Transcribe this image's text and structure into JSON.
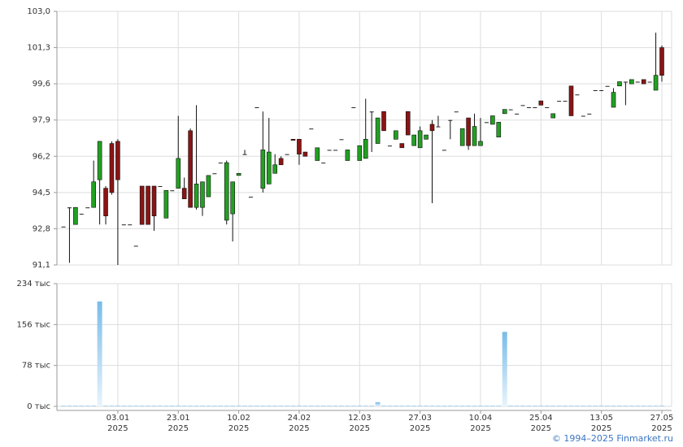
{
  "chart_data": {
    "type": "candlestick",
    "categories": [
      null,
      null,
      null,
      null,
      null,
      null,
      null,
      null,
      null,
      "03.01\n2025",
      null,
      null,
      null,
      null,
      null,
      null,
      null,
      null,
      null,
      "23.01\n2025",
      null,
      null,
      null,
      null,
      null,
      null,
      null,
      null,
      null,
      "10.02\n2025",
      null,
      null,
      null,
      null,
      null,
      null,
      null,
      null,
      null,
      "24.02\n2025",
      null,
      null,
      null,
      null,
      null,
      null,
      null,
      null,
      null,
      "12.03\n2025",
      null,
      null,
      null,
      null,
      null,
      null,
      null,
      null,
      null,
      "27.03\n2025",
      null,
      null,
      null,
      null,
      null,
      null,
      null,
      null,
      null,
      "10.04\n2025",
      null,
      null,
      null,
      null,
      null,
      null,
      null,
      null,
      null,
      "25.04\n2025",
      null,
      null,
      null,
      null,
      null,
      null,
      null,
      null,
      null,
      "13.05\n2025",
      null,
      null,
      null,
      null,
      null,
      null,
      null,
      null,
      null,
      "27.05\n2025"
    ],
    "open": [
      92.9,
      93.8,
      93.0,
      93.5,
      93.8,
      93.8,
      95.1,
      94.7,
      96.8,
      96.9,
      93.0,
      93.0,
      92.0,
      94.8,
      94.8,
      94.8,
      94.8,
      93.3,
      94.6,
      94.7,
      94.7,
      97.4,
      93.8,
      93.8,
      94.3,
      95.4,
      95.9,
      93.2,
      93.5,
      95.3,
      96.3,
      94.3,
      98.5,
      94.7,
      94.9,
      95.4,
      96.1,
      96.3,
      97.0,
      97.0,
      96.4,
      97.5,
      96.0,
      95.9,
      96.5,
      96.5,
      97.0,
      96.0,
      98.5,
      96.0,
      96.1,
      98.3,
      96.8,
      98.3,
      96.7,
      97.0,
      96.8,
      98.3,
      96.7,
      96.6,
      97.0,
      97.7,
      97.6,
      96.5,
      97.9,
      98.3,
      96.7,
      98.0,
      96.7,
      96.7,
      97.8,
      97.7,
      97.1,
      98.2,
      98.4,
      98.2,
      98.6,
      98.5,
      98.5,
      98.8,
      98.5,
      98.0,
      98.8,
      98.8,
      99.5,
      99.1,
      98.1,
      98.2,
      99.3,
      99.3,
      99.5,
      98.5,
      99.5,
      99.7,
      99.6,
      99.7,
      99.8,
      99.7,
      99.3,
      101.3
    ],
    "high": [
      92.9,
      93.8,
      93.8,
      93.5,
      93.8,
      96.0,
      96.9,
      94.8,
      96.9,
      97.0,
      93.0,
      93.0,
      92.0,
      94.8,
      94.8,
      94.8,
      94.8,
      94.6,
      94.6,
      98.1,
      95.2,
      97.5,
      98.6,
      95.0,
      95.3,
      95.4,
      95.9,
      96.0,
      95.0,
      95.4,
      96.5,
      94.3,
      98.5,
      98.3,
      98.0,
      96.3,
      96.2,
      96.3,
      97.0,
      97.0,
      96.4,
      97.5,
      96.6,
      95.9,
      96.5,
      96.5,
      97.0,
      96.5,
      98.5,
      96.7,
      98.9,
      98.3,
      98.0,
      98.3,
      96.7,
      97.4,
      96.8,
      98.3,
      97.2,
      97.6,
      97.2,
      97.9,
      98.1,
      96.5,
      97.9,
      98.3,
      97.5,
      98.0,
      98.2,
      98.0,
      97.8,
      98.1,
      97.8,
      98.4,
      98.4,
      98.2,
      98.6,
      98.5,
      98.5,
      98.8,
      98.5,
      98.2,
      98.8,
      98.8,
      99.5,
      99.1,
      98.1,
      98.2,
      99.3,
      99.3,
      99.5,
      99.4,
      99.7,
      99.7,
      99.8,
      99.7,
      99.8,
      99.7,
      102.0,
      101.4
    ],
    "low": [
      92.9,
      91.2,
      93.0,
      93.5,
      93.8,
      93.8,
      93.0,
      93.0,
      94.4,
      91.1,
      93.0,
      93.0,
      92.0,
      93.0,
      93.0,
      92.7,
      94.8,
      93.3,
      94.6,
      94.7,
      94.2,
      93.8,
      93.7,
      93.4,
      94.3,
      95.4,
      95.9,
      93.0,
      92.2,
      95.3,
      96.3,
      94.3,
      98.5,
      94.5,
      94.9,
      95.4,
      95.8,
      96.3,
      96.95,
      95.8,
      96.2,
      97.5,
      96.0,
      95.9,
      96.5,
      96.5,
      97.0,
      96.0,
      98.5,
      96.0,
      96.1,
      96.4,
      96.8,
      97.4,
      96.7,
      97.0,
      96.6,
      97.2,
      96.7,
      96.6,
      97.0,
      94.0,
      97.6,
      96.5,
      97.0,
      98.3,
      96.7,
      96.5,
      96.7,
      96.7,
      97.8,
      97.7,
      97.1,
      98.2,
      98.4,
      98.2,
      98.6,
      98.5,
      98.5,
      98.6,
      98.5,
      98.0,
      98.8,
      98.8,
      98.1,
      99.1,
      98.1,
      98.2,
      99.3,
      99.3,
      99.5,
      98.5,
      99.5,
      98.6,
      99.6,
      99.7,
      99.6,
      99.7,
      99.3,
      99.7
    ],
    "close": [
      92.9,
      93.8,
      93.8,
      93.5,
      93.8,
      95.0,
      96.9,
      93.4,
      94.5,
      95.1,
      93.0,
      93.0,
      92.0,
      93.0,
      93.0,
      93.4,
      94.8,
      94.6,
      94.6,
      96.1,
      94.2,
      93.8,
      94.9,
      95.0,
      95.3,
      95.4,
      95.9,
      95.9,
      95.0,
      95.4,
      96.3,
      94.3,
      98.5,
      96.5,
      96.4,
      95.8,
      95.8,
      96.3,
      96.95,
      96.3,
      96.2,
      97.5,
      96.6,
      95.9,
      96.5,
      96.5,
      97.0,
      96.5,
      98.5,
      96.7,
      97.0,
      98.3,
      98.0,
      97.4,
      96.7,
      97.4,
      96.6,
      97.2,
      97.2,
      97.4,
      97.2,
      97.4,
      97.6,
      96.5,
      97.9,
      98.3,
      97.5,
      96.7,
      97.6,
      96.9,
      97.8,
      98.1,
      97.8,
      98.4,
      98.4,
      98.2,
      98.6,
      98.5,
      98.5,
      98.6,
      98.5,
      98.2,
      98.8,
      98.8,
      98.1,
      99.1,
      98.1,
      98.2,
      99.3,
      99.3,
      99.5,
      99.2,
      99.7,
      99.7,
      99.8,
      99.7,
      99.6,
      99.7,
      100.0,
      100.0
    ],
    "up_color": "#22a022",
    "down_color": "#8b1414",
    "ylim": [
      91.1,
      103.0
    ],
    "yticks": [
      {
        "value": 91.1,
        "label": "91,1"
      },
      {
        "value": 92.8,
        "label": "92,8"
      },
      {
        "value": 94.5,
        "label": "94,5"
      },
      {
        "value": 96.2,
        "label": "96,2"
      },
      {
        "value": 97.9,
        "label": "97,9"
      },
      {
        "value": 99.6,
        "label": "99,6"
      },
      {
        "value": 101.3,
        "label": "101,3"
      },
      {
        "value": 103.0,
        "label": "103,0"
      }
    ],
    "grid": true,
    "volume": {
      "color": "#78bce8",
      "values": [
        1,
        1,
        1,
        1,
        1,
        1,
        200,
        1,
        1,
        1,
        1,
        1,
        1,
        1,
        1,
        1,
        1,
        1,
        1,
        1,
        1,
        1,
        1,
        1,
        1,
        1,
        1,
        1,
        1,
        1,
        1,
        1,
        1,
        1,
        1,
        1,
        1,
        1,
        1,
        1,
        1,
        1,
        1,
        1,
        1,
        1,
        1,
        1,
        1,
        1,
        1,
        1,
        8,
        1,
        1,
        1,
        1,
        1,
        1,
        1,
        1,
        1,
        1,
        1,
        1,
        1,
        1,
        1,
        1,
        1,
        1,
        1,
        1,
        142,
        1,
        1,
        1,
        1,
        1,
        1,
        1,
        1,
        1,
        1,
        1,
        1,
        1,
        1,
        1,
        1,
        1,
        1,
        1,
        1,
        1,
        1,
        1,
        1,
        1,
        1
      ],
      "ylim": [
        0,
        234
      ],
      "yticks": [
        {
          "value": 0,
          "label": "0 тыс"
        },
        {
          "value": 78,
          "label": "78 тыс"
        },
        {
          "value": 156,
          "label": "156 тыс"
        },
        {
          "value": 234,
          "label": "234 тыс"
        }
      ]
    }
  },
  "footer": "© 1994–2025 Finmarket.ru"
}
